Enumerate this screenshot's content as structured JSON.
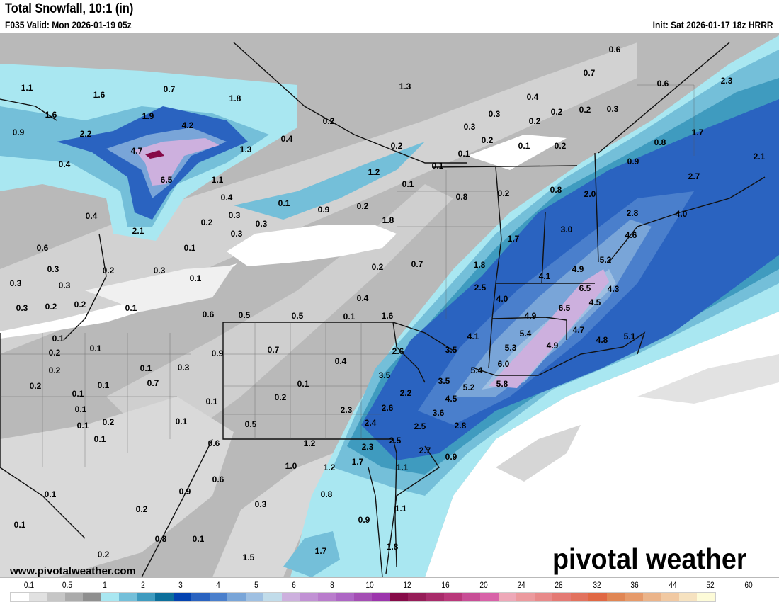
{
  "header": {
    "title": "Total Snowfall, 10:1 (in)",
    "valid": "F035 Valid: Mon 2026-01-19 05z",
    "init": "Init: Sat 2026-01-17 18z HRRR"
  },
  "footer": {
    "website": "www.pivotalweather.com",
    "brand_logo": "pivotal weather"
  },
  "map": {
    "labels": [
      "0.6",
      "0.7",
      "2.3",
      "0.6",
      "1.3",
      "1.1",
      "1.6",
      "0.7",
      "1.8",
      "0.4",
      "0.3",
      "0.2",
      "0.2",
      "0.3",
      "1.9",
      "1.6",
      "4.2",
      "0.2",
      "0.3",
      "0.2",
      "0.9",
      "2.2",
      "0.4",
      "0.2",
      "0.1",
      "0.2",
      "1.7",
      "0.8",
      "4.7",
      "1.3",
      "0.2",
      "0.1",
      "2.1",
      "0.9",
      "0.4",
      "1.2",
      "0.1",
      "6.5",
      "1.1",
      "2.7",
      "0.8",
      "0.2",
      "2.0",
      "0.1",
      "0.4",
      "0.8",
      "0.1",
      "0.9",
      "0.2",
      "0.3",
      "1.8",
      "2.8",
      "4.0",
      "0.2",
      "0.3",
      "0.4",
      "0.3",
      "2.1",
      "3.0",
      "4.6",
      "1.7",
      "0.6",
      "0.1",
      "5.2",
      "4.9",
      "0.3",
      "0.2",
      "0.3",
      "0.2",
      "0.7",
      "1.8",
      "4.1",
      "0.3",
      "0.3",
      "0.1",
      "6.5",
      "4.3",
      "2.5",
      "0.4",
      "4.0",
      "6.5",
      "4.5",
      "0.3",
      "0.2",
      "0.2",
      "0.1",
      "0.6",
      "0.5",
      "0.5",
      "0.1",
      "1.6",
      "4.9",
      "5.4",
      "4.7",
      "4.1",
      "4.8",
      "5.1",
      "0.1",
      "0.1",
      "0.2",
      "0.9",
      "0.7",
      "2.6",
      "3.5",
      "5.3",
      "4.9",
      "0.4",
      "0.1",
      "0.3",
      "0.2",
      "3.5",
      "5.4",
      "6.0",
      "3.5",
      "0.2",
      "0.7",
      "0.1",
      "0.1",
      "5.8",
      "5.2",
      "2.2",
      "0.1",
      "0.2",
      "0.1",
      "4.5",
      "0.1",
      "2.3",
      "2.6",
      "3.6",
      "0.2",
      "0.1",
      "0.1",
      "0.5",
      "2.4",
      "2.5",
      "2.8",
      "0.1",
      "0.6",
      "1.2",
      "2.5",
      "2.3",
      "2.7",
      "1.0",
      "1.2",
      "1.7",
      "1.1",
      "0.9",
      "0.6",
      "0.9",
      "0.1",
      "0.8",
      "0.3",
      "0.2",
      "1.1",
      "0.1",
      "0.8",
      "0.1",
      "0.9",
      "1.7",
      "0.2",
      "1.5",
      "1.8"
    ]
  },
  "colorbar": {
    "ticks": [
      "0.1",
      "0.5",
      "1",
      "2",
      "3",
      "4",
      "5",
      "6",
      "8",
      "10",
      "12",
      "16",
      "20",
      "24",
      "28",
      "32",
      "36",
      "44",
      "52",
      "60"
    ],
    "colors": [
      "#ffffff",
      "#e1e1e1",
      "#c6c6c6",
      "#ababab",
      "#8f8f8f",
      "#a9e7f1",
      "#74bfd9",
      "#3f9bbf",
      "#0c6f9b",
      "#0443b0",
      "#2a63c0",
      "#4a7fcc",
      "#79a5d8",
      "#9fc0e2",
      "#c1dcea",
      "#cdb0de",
      "#c191d4",
      "#b97ccc",
      "#ad66c4",
      "#a44eb4",
      "#9c35ac",
      "#860a48",
      "#961d58",
      "#a82b6a",
      "#b9387a",
      "#c84e96",
      "#d862a8",
      "#eea8b8",
      "#ec9a9e",
      "#e88a8a",
      "#e47a74",
      "#e2725e",
      "#e06844",
      "#e08654",
      "#e69a6a",
      "#ebb48a",
      "#f1c9a2",
      "#f6e2c0",
      "#fdfbd8"
    ]
  }
}
